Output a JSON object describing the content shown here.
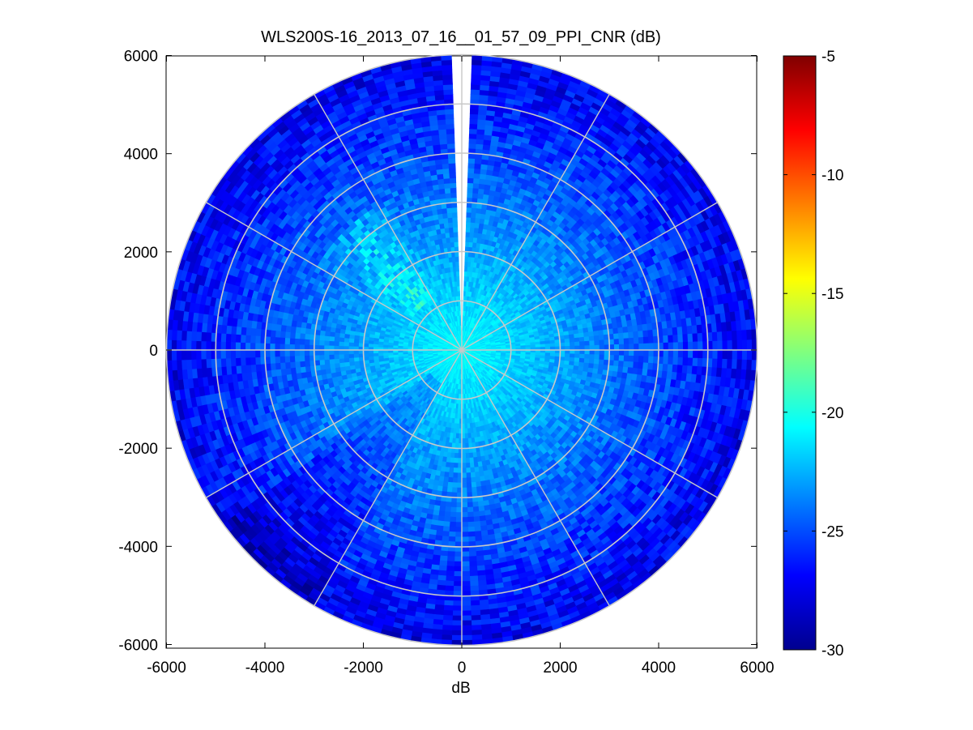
{
  "chart_data": {
    "type": "heatmap",
    "subtype": "polar-ppi",
    "title": "WLS200S-16_2013_07_16__01_57_09_PPI_CNR (dB)",
    "xlabel": "dB",
    "ylabel": "",
    "xlim": [
      -6000,
      6000
    ],
    "ylim": [
      -6000,
      6000
    ],
    "x_ticks": [
      "-6000",
      "-4000",
      "-2000",
      "0",
      "2000",
      "4000",
      "6000"
    ],
    "y_ticks": [
      "6000",
      "4000",
      "2000",
      "0",
      "-2000",
      "-4000",
      "-6000"
    ],
    "x_tick_values": [
      -6000,
      -4000,
      -2000,
      0,
      2000,
      4000,
      6000
    ],
    "y_tick_values": [
      6000,
      4000,
      2000,
      0,
      -2000,
      -4000,
      -6000
    ],
    "max_range": 6000,
    "range_rings": [
      1000,
      2000,
      3000,
      4000,
      5000,
      6000
    ],
    "spoke_step_deg": 30,
    "missing_sector_deg": [
      -1.5,
      1.5
    ],
    "grid": true,
    "colormap": "jet",
    "colorbar": {
      "min": -30,
      "max": -5,
      "ticks": [
        "-5",
        "-10",
        "-15",
        "-20",
        "-25",
        "-30"
      ],
      "tick_values": [
        -5,
        -10,
        -15,
        -20,
        -25,
        -30
      ]
    },
    "field_description": "CNR decreases with range: about -20 dB near the center falling to about -27 dB at 6000; higher values (about -18 dB) in a northwest arc near range 2000-3000"
  },
  "colors": {
    "grid": "#c8c8c8",
    "axes": "#000000",
    "background": "#ffffff"
  }
}
